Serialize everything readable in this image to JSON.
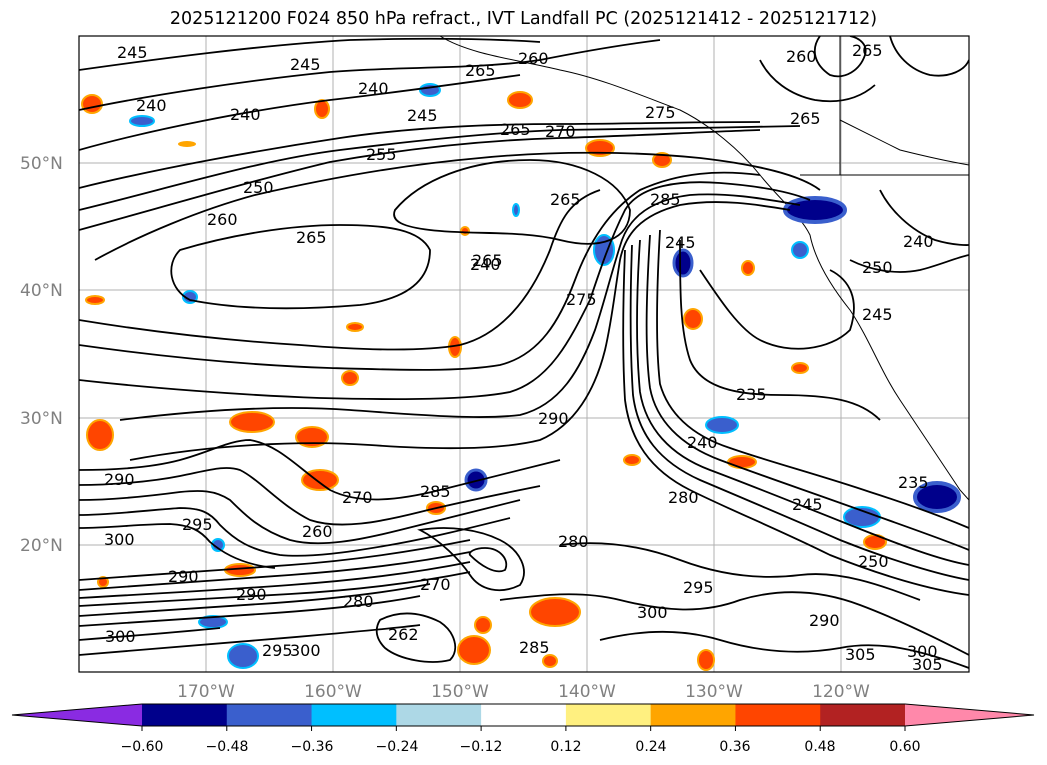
{
  "title": "2025121200 F024 850 hPa refract., IVT Landfall PC (2025121412 - 2025121712)",
  "map": {
    "lat_labels": [
      "50°N",
      "40°N",
      "30°N",
      "20°N"
    ],
    "lon_labels": [
      "170°W",
      "160°W",
      "150°W",
      "140°W",
      "130°W",
      "120°W"
    ],
    "contour_labels": [
      "245",
      "245",
      "240",
      "240",
      "240",
      "265",
      "260",
      "260",
      "265",
      "265",
      "245",
      "265",
      "270",
      "275",
      "255",
      "250",
      "260",
      "265",
      "265",
      "285",
      "265",
      "275",
      "245",
      "250",
      "245",
      "235",
      "240",
      "240",
      "280",
      "245",
      "290",
      "250",
      "295",
      "300",
      "290",
      "285",
      "270",
      "280",
      "270",
      "290",
      "300",
      "280",
      "262",
      "295",
      "300",
      "295",
      "300",
      "285",
      "290",
      "305",
      "300",
      "305",
      "260",
      "235",
      "240",
      "290"
    ]
  },
  "colorbar": {
    "colors": [
      "#8a2be2",
      "#00008b",
      "#3a5fcd",
      "#00bfff",
      "#add8e6",
      "#ffffff",
      "#fff080",
      "#ffa500",
      "#ff4500",
      "#b22222",
      "#ff88aa"
    ],
    "tick_labels": [
      "−0.60",
      "−0.48",
      "−0.36",
      "−0.24",
      "−0.12",
      "0.12",
      "0.24",
      "0.36",
      "0.48",
      "0.60"
    ]
  }
}
